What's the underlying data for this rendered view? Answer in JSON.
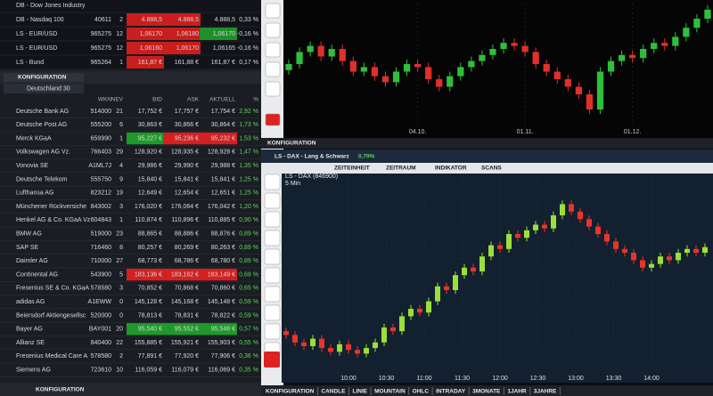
{
  "quotes": {
    "rows": [
      {
        "cells": [
          "DB - Dow Jones Industry",
          "",
          "",
          "",
          "",
          "",
          ""
        ]
      },
      {
        "cells": [
          "DB - Nasdaq 100",
          "40611",
          "2",
          "4.888,5",
          "4.888,5",
          "4.888,5",
          "0,33 %"
        ],
        "fills": [
          "#c81e1e",
          "#c81e1e",
          null
        ]
      },
      {
        "cells": [
          "LS - EUR/USD",
          "965275",
          "12",
          "1,06170",
          "1,06180",
          "1,06170",
          "-0,16 %"
        ],
        "fills": [
          "#c81e1e",
          "#c81e1e",
          "#1f8f2a"
        ]
      },
      {
        "cells": [
          "LS - EUR/USD",
          "965275",
          "12",
          "1,06160",
          "1,06170",
          "1,06165",
          "-0,16 %"
        ],
        "fills": [
          "#c81e1e",
          "#c81e1e",
          null
        ]
      },
      {
        "cells": [
          "LS - Bund",
          "965264",
          "1",
          "161,87 €",
          "161,88 €",
          "161,87 €",
          "0,17 %"
        ],
        "fills": [
          "#c81e1e",
          null,
          null
        ]
      }
    ]
  },
  "list_panel": {
    "config_tab": "KONFIGURATION",
    "index_name": "Deutschland 30",
    "headers": [
      "WKN",
      "NEV",
      "BID",
      "ASK",
      "AKTUELL",
      "%"
    ],
    "rows": [
      {
        "cells": [
          "Deutsche Bank AG",
          "514000",
          "21",
          "17,752 €",
          "17,757 €",
          "17,754 €",
          "2,92 %"
        ]
      },
      {
        "cells": [
          "Deutsche Post AG",
          "555200",
          "6",
          "30,863 €",
          "30,866 €",
          "30,864 €",
          "1,73 %"
        ]
      },
      {
        "cells": [
          "Merck KGaA",
          "659990",
          "1",
          "95,227 €",
          "95,236 €",
          "95,232 €",
          "1,53 %"
        ],
        "fills": [
          "#1f9a2a",
          "#d42020",
          "#d42020"
        ]
      },
      {
        "cells": [
          "Volkswagen AG Vz.",
          "766403",
          "29",
          "128,920 €",
          "128,935 €",
          "128,928 €",
          "1,47 %"
        ]
      },
      {
        "cells": [
          "Vonovia SE",
          "A1ML7J",
          "4",
          "29,986 €",
          "29,990 €",
          "29,988 €",
          "1,35 %"
        ]
      },
      {
        "cells": [
          "Deutsche Telekom",
          "555750",
          "9",
          "15,840 €",
          "15,841 €",
          "15,841 €",
          "1,25 %"
        ]
      },
      {
        "cells": [
          "Lufthansa AG",
          "823212",
          "19",
          "12,649 €",
          "12,654 €",
          "12,651 €",
          "1,25 %"
        ]
      },
      {
        "cells": [
          "Münchener Rückversiche",
          "843002",
          "3",
          "176,020 €",
          "176,064 €",
          "176,042 €",
          "1,20 %"
        ]
      },
      {
        "cells": [
          "Henkel AG & Co. KGaA Vz",
          "604843",
          "1",
          "110,874 €",
          "110,896 €",
          "110,885 €",
          "0,90 %"
        ]
      },
      {
        "cells": [
          "BMW AG",
          "519000",
          "23",
          "88,865 €",
          "88,886 €",
          "88,876 €",
          "0,89 %"
        ]
      },
      {
        "cells": [
          "SAP SE",
          "716460",
          "8",
          "80,257 €",
          "80,269 €",
          "80,263 €",
          "0,89 %"
        ]
      },
      {
        "cells": [
          "Daimler AG",
          "710000",
          "27",
          "68,773 €",
          "68,786 €",
          "68,780 €",
          "0,89 %"
        ]
      },
      {
        "cells": [
          "Continental AG",
          "543900",
          "5",
          "183,136 €",
          "183,162 €",
          "183,149 €",
          "0,69 %"
        ],
        "fills": [
          "#d42020",
          "#d42020",
          "#d42020"
        ]
      },
      {
        "cells": [
          "Fresenius SE & Co. KGaA",
          "578580",
          "3",
          "70,852 €",
          "70,868 €",
          "70,860 €",
          "0,65 %"
        ]
      },
      {
        "cells": [
          "adidas AG",
          "A1EWW",
          "0",
          "145,128 €",
          "145,168 €",
          "145,148 €",
          "0,59 %"
        ]
      },
      {
        "cells": [
          "Beiersdorf Aktiengesellsc",
          "520000",
          "0",
          "78,813 €",
          "78,831 €",
          "78,822 €",
          "0,59 %"
        ]
      },
      {
        "cells": [
          "Bayer AG",
          "BAY001",
          "20",
          "95,540 €",
          "95,552 €",
          "95,546 €",
          "0,57 %"
        ],
        "fills": [
          "#1f9a2a",
          "#1f9a2a",
          "#1f9a2a"
        ]
      },
      {
        "cells": [
          "Allianz SE",
          "840400",
          "22",
          "155,885 €",
          "155,921 €",
          "155,903 €",
          "0,55 %"
        ]
      },
      {
        "cells": [
          "Fresenius Medical Care A",
          "578580",
          "2",
          "77,891 €",
          "77,920 €",
          "77,906 €",
          "0,36 %"
        ]
      },
      {
        "cells": [
          "Siemens AG",
          "723610",
          "10",
          "116,059 €",
          "116,079 €",
          "116,069 €",
          "0,35 %"
        ]
      }
    ],
    "footer_tab": "KONFIGURATION"
  },
  "top_panel": {
    "footer_tab": "KONFIGURATION"
  },
  "bottom_panel": {
    "title": "LS - DAX - Lang & Schwarz",
    "change": "0,79%",
    "menu": [
      "ZEITEINHEIT",
      "ZEITRAUM",
      "INDIKATOR",
      "SCANS"
    ],
    "tabs": [
      "KONFIGURATION",
      "CANDLE",
      "LINIE",
      "MOUNTAIN",
      "OHLC",
      "INTRADAY",
      "3MONATE",
      "1JAHR",
      "3JAHRE"
    ]
  },
  "chart_data": [
    {
      "type": "candlestick",
      "up_color": "#2fbf3a",
      "down_color": "#e0302a",
      "ylim": [
        20,
        100
      ],
      "xticks": [
        {
          "value": 12,
          "label": "04.10."
        },
        {
          "value": 22,
          "label": "01.11."
        },
        {
          "value": 32,
          "label": "01.12."
        }
      ],
      "open": [
        56,
        60,
        68,
        72,
        65,
        70,
        62,
        55,
        58,
        52,
        48,
        55,
        60,
        58,
        50,
        45,
        52,
        58,
        62,
        66,
        70,
        74,
        72,
        68,
        60,
        55,
        50,
        45,
        40,
        30,
        55,
        62,
        66,
        64,
        70,
        74,
        72,
        78,
        84,
        90
      ],
      "high": [
        63,
        71,
        75,
        75,
        73,
        73,
        65,
        61,
        61,
        55,
        58,
        63,
        63,
        61,
        53,
        55,
        61,
        65,
        69,
        73,
        77,
        77,
        75,
        71,
        63,
        58,
        53,
        48,
        43,
        58,
        65,
        69,
        69,
        73,
        77,
        77,
        81,
        87,
        93,
        99
      ],
      "low": [
        53,
        57,
        65,
        62,
        62,
        59,
        52,
        52,
        49,
        45,
        45,
        52,
        55,
        47,
        42,
        42,
        49,
        55,
        59,
        63,
        67,
        69,
        65,
        57,
        52,
        47,
        42,
        37,
        27,
        27,
        52,
        59,
        61,
        61,
        67,
        69,
        69,
        75,
        81,
        87
      ],
      "close": [
        60,
        68,
        72,
        65,
        70,
        62,
        55,
        58,
        52,
        48,
        55,
        60,
        58,
        50,
        45,
        52,
        58,
        62,
        66,
        70,
        74,
        72,
        68,
        60,
        55,
        50,
        45,
        40,
        30,
        55,
        62,
        66,
        64,
        70,
        74,
        72,
        78,
        84,
        90,
        96
      ]
    },
    {
      "type": "candlestick",
      "title": "LS - DAX (846900)",
      "subtitle": "5 Min",
      "up_color": "#9be03a",
      "down_color": "#e8342c",
      "ylim": [
        0,
        100
      ],
      "xticks": [
        {
          "value": 7,
          "label": "10:00"
        },
        {
          "value": 11.25,
          "label": "10:30"
        },
        {
          "value": 15.5,
          "label": "11:00"
        },
        {
          "value": 19.75,
          "label": "11:30"
        },
        {
          "value": 24,
          "label": "12:00"
        },
        {
          "value": 28.25,
          "label": "12:30"
        },
        {
          "value": 32.5,
          "label": "13:00"
        },
        {
          "value": 36.75,
          "label": "13:30"
        },
        {
          "value": 41,
          "label": "14:00"
        }
      ],
      "open": [
        18,
        16,
        12,
        10,
        14,
        9,
        7,
        11,
        8,
        6,
        9,
        12,
        20,
        18,
        26,
        30,
        28,
        34,
        42,
        40,
        48,
        52,
        50,
        58,
        64,
        62,
        70,
        68,
        72,
        75,
        73,
        80,
        86,
        82,
        78,
        74,
        70,
        66,
        62,
        60,
        56,
        52,
        54,
        58,
        56,
        60,
        62,
        60
      ],
      "high": [
        20,
        18,
        14,
        16,
        16,
        11,
        13,
        13,
        10,
        11,
        14,
        22,
        22,
        28,
        32,
        32,
        36,
        44,
        44,
        50,
        54,
        54,
        60,
        66,
        66,
        72,
        72,
        74,
        77,
        77,
        82,
        88,
        88,
        84,
        80,
        76,
        72,
        68,
        64,
        62,
        58,
        56,
        60,
        60,
        62,
        64,
        64,
        65
      ],
      "low": [
        14,
        10,
        8,
        8,
        7,
        5,
        5,
        6,
        4,
        4,
        7,
        10,
        16,
        16,
        24,
        26,
        26,
        32,
        38,
        38,
        46,
        48,
        48,
        56,
        60,
        60,
        66,
        66,
        70,
        71,
        71,
        78,
        80,
        76,
        72,
        68,
        64,
        60,
        58,
        54,
        50,
        50,
        52,
        54,
        54,
        58,
        58,
        58
      ],
      "close": [
        16,
        12,
        10,
        14,
        9,
        7,
        11,
        8,
        6,
        9,
        12,
        20,
        18,
        26,
        30,
        28,
        34,
        42,
        40,
        48,
        52,
        50,
        58,
        64,
        62,
        70,
        68,
        72,
        75,
        73,
        80,
        86,
        82,
        78,
        74,
        70,
        66,
        62,
        60,
        56,
        52,
        54,
        58,
        56,
        60,
        62,
        60,
        63
      ]
    }
  ]
}
